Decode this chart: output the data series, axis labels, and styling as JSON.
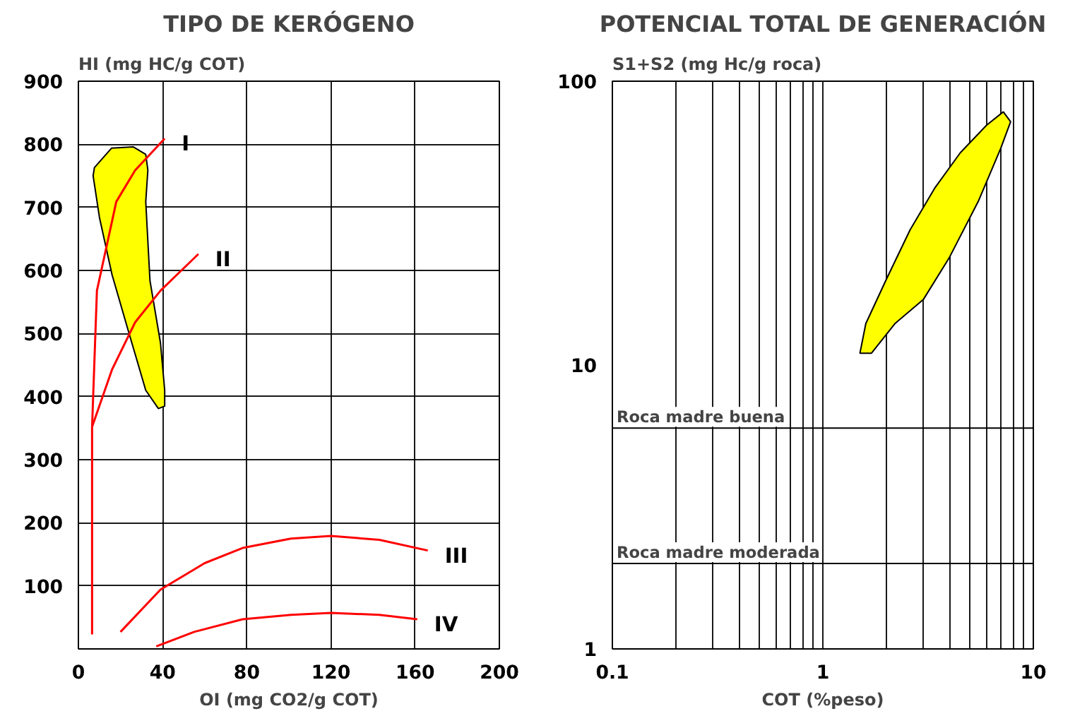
{
  "chart_data": [
    {
      "type": "line",
      "title": "TIPO DE KERÓGENO",
      "xlabel": "OI (mg CO2/g COT)",
      "ylabel": "HI (mg HC/g COT)",
      "xlim": [
        0,
        200
      ],
      "ylim": [
        0,
        900
      ],
      "xticks": [
        0,
        40,
        80,
        120,
        160,
        200
      ],
      "yticks": [
        100,
        200,
        300,
        400,
        500,
        600,
        700,
        800,
        900
      ],
      "grid": true,
      "series": [
        {
          "type": "area",
          "color": "#ffff00",
          "x": [
            7.6,
            15.8,
            26,
            32,
            33,
            32,
            34,
            39,
            41,
            41,
            38,
            32,
            24,
            16,
            10,
            7,
            7.6
          ],
          "values": [
            763,
            794,
            796,
            784,
            759,
            709,
            584,
            485,
            410,
            385,
            381,
            410,
            501,
            593,
            684,
            750,
            763
          ]
        },
        {
          "name": "I",
          "color": "#ff0000",
          "x": [
            6.5,
            6.5,
            8.8,
            18,
            27,
            41
          ],
          "values": [
            23,
            352,
            568,
            709,
            759,
            809
          ]
        },
        {
          "name": "II",
          "color": "#ff0000",
          "x": [
            6.5,
            16,
            27,
            39,
            57
          ],
          "values": [
            352,
            443,
            518,
            568,
            626
          ]
        },
        {
          "name": "III",
          "color": "#ff0000",
          "x": [
            20,
            39,
            60,
            78,
            101,
            120,
            143,
            166
          ],
          "values": [
            27,
            94,
            136,
            160,
            175,
            179,
            173,
            156
          ]
        },
        {
          "name": "IV",
          "color": "#ff0000",
          "x": [
            37,
            55,
            78,
            101,
            120,
            143,
            161
          ],
          "values": [
            4,
            27,
            47,
            54,
            57,
            54,
            47
          ]
        }
      ]
    },
    {
      "type": "line",
      "title": "POTENCIAL TOTAL DE GENERACIÓN",
      "xlabel": "COT (%peso)",
      "ylabel": "S1+S2 (mg Hc/g roca)",
      "log": "xy",
      "xlim": [
        0.1,
        10
      ],
      "ylim": [
        1,
        100
      ],
      "xticks": [
        0.1,
        {
          "value": 0.2,
          "label": null
        },
        {
          "value": 0.3,
          "label": null
        },
        {
          "value": 0.4,
          "label": null
        },
        {
          "value": 0.5,
          "label": null
        },
        {
          "value": 0.6,
          "label": null
        },
        {
          "value": 0.7,
          "label": null
        },
        {
          "value": 0.8,
          "label": null
        },
        {
          "value": 0.9,
          "label": null
        },
        1,
        {
          "value": 2,
          "label": null
        },
        {
          "value": 3,
          "label": null
        },
        {
          "value": 4,
          "label": null
        },
        {
          "value": 5,
          "label": null
        },
        {
          "value": 6,
          "label": null
        },
        {
          "value": 7,
          "label": null
        },
        {
          "value": 8,
          "label": null
        },
        {
          "value": 9,
          "label": null
        },
        10
      ],
      "yticks": [
        1,
        10,
        100
      ],
      "grid": "x",
      "ref_lines": [
        {
          "axis": "y",
          "value": 6,
          "label": "Roca madre buena",
          "color": "#000000"
        },
        {
          "axis": "y",
          "value": 2,
          "label": "Roca madre moderada",
          "color": "#000000"
        }
      ],
      "series": [
        {
          "type": "area",
          "color": "#ffff00",
          "x": [
            1.5,
            1.6,
            2.0,
            2.6,
            3.4,
            4.5,
            6,
            7.2,
            7.8,
            7,
            5.5,
            4,
            3,
            2.2,
            1.7,
            1.5
          ],
          "values": [
            11,
            14,
            20,
            30,
            42,
            56,
            70,
            78,
            72,
            58,
            38,
            24,
            17,
            14,
            11,
            11
          ]
        }
      ]
    }
  ]
}
